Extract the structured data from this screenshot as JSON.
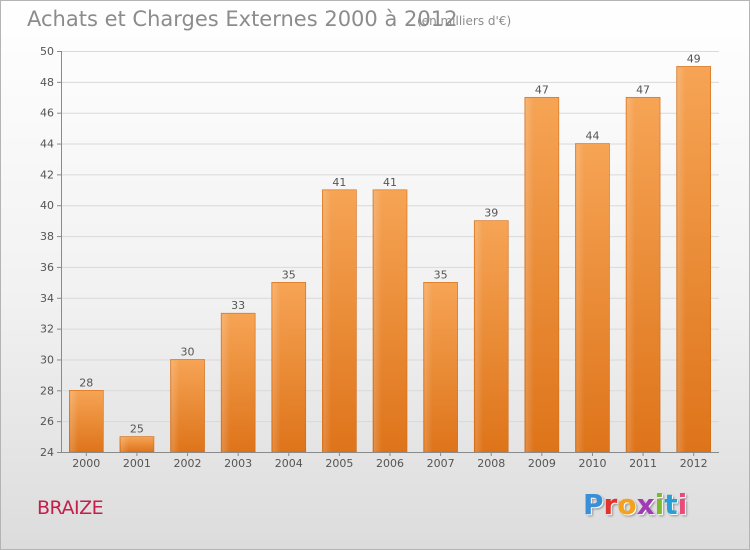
{
  "header": {
    "title": "Achats et Charges Externes 2000 à 2012",
    "subtitle": "(en milliers d'€)"
  },
  "footer": {
    "commune": "BRAIZE",
    "logo_letters": [
      "P",
      "r",
      "o",
      "x",
      "i",
      "t",
      "i"
    ]
  },
  "colors": {
    "bar": "#f28a2e",
    "bar_light": "#f6a455",
    "bar_dark": "#e0781e",
    "grid": "#d9d9d9",
    "axis": "#8a8a8a",
    "text": "#555555"
  },
  "chart_data": {
    "type": "bar",
    "title": "Achats et Charges Externes 2000 à 2012",
    "subtitle": "(en milliers d'€)",
    "xlabel": "",
    "ylabel": "",
    "categories": [
      "2000",
      "2001",
      "2002",
      "2003",
      "2004",
      "2005",
      "2006",
      "2007",
      "2008",
      "2009",
      "2010",
      "2011",
      "2012"
    ],
    "values": [
      28,
      25,
      30,
      33,
      35,
      41,
      41,
      35,
      39,
      47,
      44,
      47,
      49
    ],
    "ylim": [
      24,
      50
    ],
    "yticks": [
      24,
      26,
      28,
      30,
      32,
      34,
      36,
      38,
      40,
      42,
      44,
      46,
      48,
      50
    ],
    "grid": true,
    "legend": "none"
  }
}
